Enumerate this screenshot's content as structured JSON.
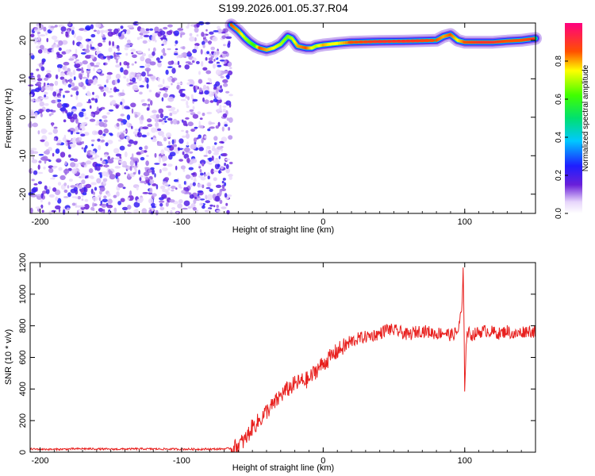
{
  "title": "S199.2026.001.05.37.R04",
  "chart_data": [
    {
      "type": "heatmap",
      "xlabel": "Height of straight line (km)",
      "ylabel": "Frequency (Hz)",
      "xlim": [
        -207,
        150
      ],
      "ylim": [
        -25,
        24.5
      ],
      "xticks": [
        -200,
        -100,
        0,
        100
      ],
      "yticks": [
        -20,
        -10,
        0,
        10,
        20
      ],
      "noise_region": {
        "x": [
          -207,
          -65
        ],
        "y": [
          -25,
          24.5
        ],
        "value_range": [
          0.05,
          0.25
        ]
      },
      "ridge": {
        "x": [
          -65,
          -60,
          -55,
          -52,
          -48,
          -45,
          -40,
          -35,
          -30,
          -25,
          -22,
          -18,
          -12,
          -8,
          -5,
          0,
          5,
          10,
          20,
          40,
          60,
          80,
          85,
          90,
          95,
          100,
          110,
          120,
          130,
          140,
          150
        ],
        "y": [
          24,
          22.5,
          20.5,
          19.5,
          18.5,
          18,
          17.5,
          18,
          19,
          21,
          20.5,
          18.5,
          18,
          18,
          18.5,
          18.8,
          19,
          19.2,
          19.5,
          19.7,
          19.8,
          20,
          21,
          21.5,
          20,
          19.5,
          19.5,
          19.5,
          19.8,
          20,
          20.5
        ],
        "amplitude": [
          0.85,
          0.8,
          0.7,
          0.65,
          0.6,
          0.85,
          0.8,
          0.75,
          0.7,
          0.65,
          0.7,
          0.8,
          0.85,
          0.75,
          0.7,
          0.8,
          0.75,
          0.75,
          0.85,
          0.9,
          0.9,
          0.85,
          0.8,
          0.85,
          0.75,
          0.85,
          0.9,
          0.9,
          0.85,
          0.85,
          0.9
        ]
      },
      "colorbar": {
        "label": "Normalized spectral amplitude",
        "ticks": [
          0.0,
          0.2,
          0.4,
          0.6,
          0.8
        ],
        "tick_labels": [
          "0.0",
          "0.2",
          "0.4",
          "0.6",
          "0.8"
        ],
        "range": [
          0,
          1
        ]
      }
    },
    {
      "type": "line",
      "xlabel": "Height of straight line (km)",
      "ylabel": "SNR (10 * v/v)",
      "xlim": [
        -207,
        150
      ],
      "ylim": [
        0,
        1200
      ],
      "xticks": [
        -200,
        -100,
        0,
        100
      ],
      "yticks": [
        0,
        200,
        400,
        600,
        800,
        1000,
        1200
      ],
      "color": "#e8201e",
      "series": [
        {
          "x": [
            -207,
            -190,
            -170,
            -150,
            -130,
            -110,
            -90,
            -75,
            -68,
            -62,
            -55,
            -50,
            -45,
            -40,
            -35,
            -30,
            -25,
            -20,
            -15,
            -10,
            -5,
            0,
            5,
            10,
            15,
            20,
            25,
            30,
            35,
            40,
            45,
            50,
            55,
            60,
            65,
            70,
            75,
            80,
            85,
            90,
            95,
            98,
            99,
            100,
            101,
            102,
            105,
            110,
            115,
            120,
            125,
            130,
            135,
            140,
            145,
            150
          ],
          "y": [
            20,
            18,
            22,
            19,
            21,
            20,
            19,
            20,
            22,
            30,
            80,
            160,
            200,
            260,
            300,
            360,
            400,
            430,
            450,
            460,
            520,
            560,
            600,
            640,
            670,
            700,
            720,
            730,
            740,
            750,
            780,
            770,
            760,
            740,
            760,
            770,
            760,
            750,
            760,
            740,
            760,
            900,
            1160,
            380,
            700,
            760,
            740,
            760,
            770,
            760,
            750,
            770,
            740,
            760,
            770,
            760
          ]
        }
      ]
    }
  ],
  "colors": {
    "line": "#e8201e",
    "noise_purple": "#6a1fd9",
    "axis": "#000000"
  }
}
